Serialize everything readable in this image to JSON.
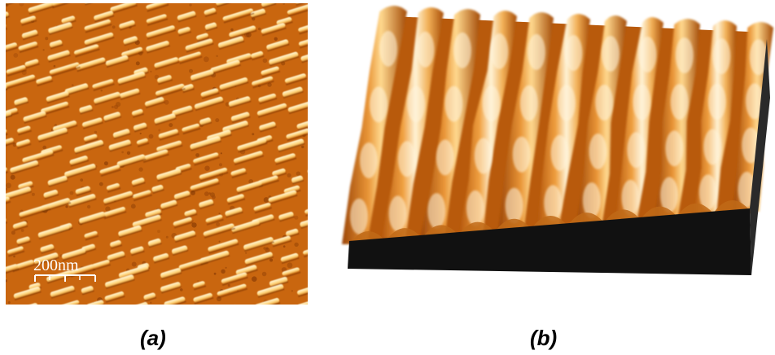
{
  "panel_a": {
    "caption": "(a)",
    "scale_bar_label": "200nm"
  },
  "panel_b": {
    "caption": "(b)"
  },
  "colors": {
    "afm_base": "#c9660f",
    "afm_dark": "#8e3f05",
    "afm_highlight": "#ffe4a8",
    "afm_white": "#fffaf0",
    "base_block": "#111111"
  }
}
